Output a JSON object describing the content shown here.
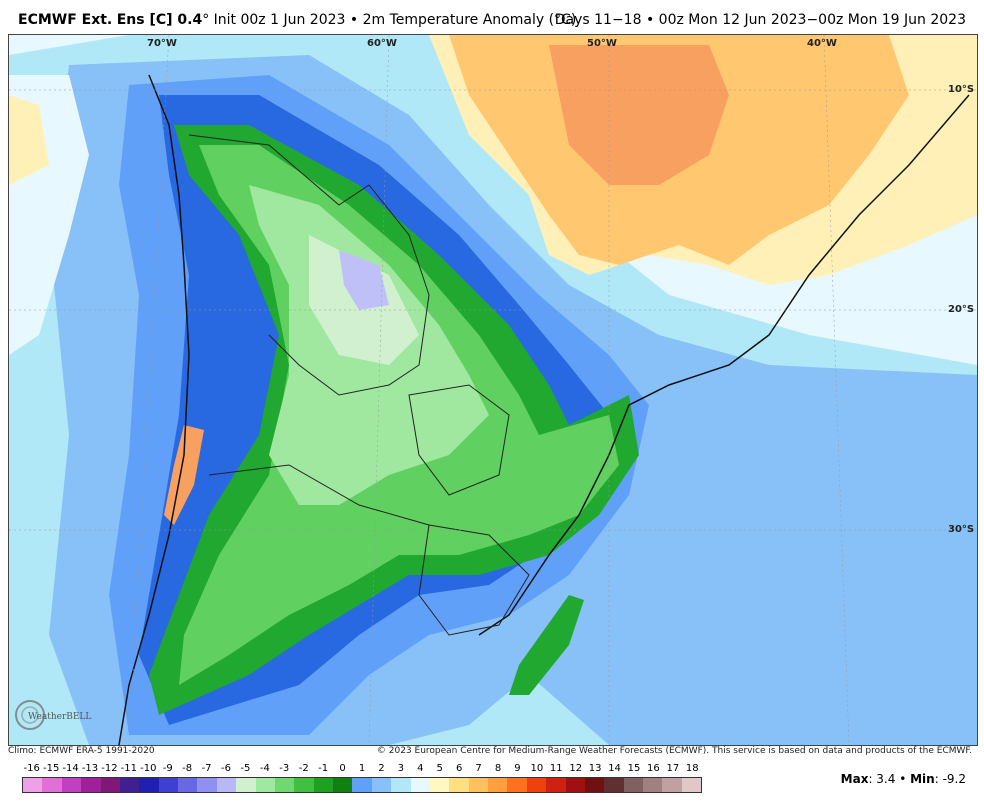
{
  "header": {
    "model": "ECMWF Ext.",
    "ens_label": "Ens [C] 0.4",
    "degree": "°",
    "init": "Init 00z 1 Jun 2023",
    "bullet": "•",
    "variable": "2m Temperature Anomaly (°C)",
    "valid": "Days 11−18 • 00z Mon 12 Jun 2023−00z Mon 19 Jun 2023"
  },
  "map": {
    "lon_labels": [
      "70°W",
      "60°W",
      "50°W",
      "40°W"
    ],
    "lat_labels": [
      "10°S",
      "20°S",
      "30°S"
    ],
    "logo_text": "WeatherBELL"
  },
  "footer": {
    "climo": "Climo: ECMWF ERA-5 1991-2020",
    "copyright": "© 2023 European Centre for Medium-Range Weather Forecasts (ECMWF). This service is based on data and products of the ECMWF."
  },
  "colorbar": {
    "ticks": [
      "-16",
      "-15",
      "-14",
      "-13",
      "-12",
      "-11",
      "-10",
      "-9",
      "-8",
      "-7",
      "-6",
      "-5",
      "-4",
      "-3",
      "-2",
      "-1",
      "0",
      "1",
      "2",
      "3",
      "4",
      "5",
      "6",
      "7",
      "8",
      "9",
      "10",
      "11",
      "12",
      "13",
      "14",
      "15",
      "16",
      "17",
      "18"
    ],
    "colors": [
      "#f0a0e8",
      "#e070d8",
      "#c040c0",
      "#a0209c",
      "#801878",
      "#402090",
      "#2020b0",
      "#4040d0",
      "#6868e0",
      "#9090f0",
      "#b8b8f8",
      "#d0f0d0",
      "#a0e8a0",
      "#70d870",
      "#40c040",
      "#20a020",
      "#108010",
      "#60a0f8",
      "#88c0f8",
      "#b0e8f8",
      "#e8f8ff",
      "#fff8c0",
      "#ffe080",
      "#ffc060",
      "#ffa040",
      "#ff7020",
      "#f04010",
      "#d02010",
      "#a01010",
      "#701010",
      "#603030",
      "#806060",
      "#a08080",
      "#c0a0a0",
      "#e0c8c8"
    ],
    "max_label": "Max",
    "max_value": ": 3.4",
    "min_label": "Min",
    "min_value": ": -9.2",
    "sep": " • "
  },
  "colors": {
    "ocean_pale": "#e8f8ff",
    "light_blue": "#b0e8f8",
    "mid_blue": "#88c0f8",
    "blue": "#60a0f8",
    "deep_blue": "#2868e0",
    "light_green": "#a0e8a0",
    "green": "#60d060",
    "dark_green": "#20a830",
    "warm": "#ffc870",
    "warm_dark": "#f8a060",
    "pale_yellow": "#fff0b8"
  }
}
